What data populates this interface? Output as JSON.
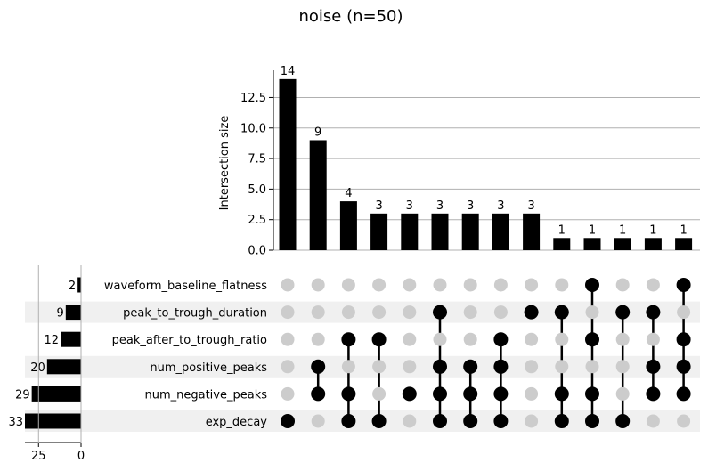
{
  "chart_data": {
    "type": "upset",
    "title": "noise (n=50)",
    "intersection_axis": {
      "label": "Intersection size",
      "ylim": [
        0,
        14.5
      ],
      "ticks": [
        0.0,
        2.5,
        5.0,
        7.5,
        10.0,
        12.5
      ],
      "tick_labels": [
        "0.0",
        "2.5",
        "5.0",
        "7.5",
        "10.0",
        "12.5"
      ],
      "grid": true
    },
    "set_size_axis": {
      "ticks": [
        25,
        0
      ],
      "tick_labels": [
        "25",
        "0"
      ],
      "xlim": [
        33,
        0
      ]
    },
    "sets": [
      {
        "name": "waveform_baseline_flatness",
        "size": 2
      },
      {
        "name": "peak_to_trough_duration",
        "size": 9
      },
      {
        "name": "peak_after_to_trough_ratio",
        "size": 12
      },
      {
        "name": "num_positive_peaks",
        "size": 20
      },
      {
        "name": "num_negative_peaks",
        "size": 29
      },
      {
        "name": "exp_decay",
        "size": 33
      }
    ],
    "intersections": [
      {
        "size": 14,
        "label": "14",
        "members": [
          "exp_decay"
        ]
      },
      {
        "size": 9,
        "label": "9",
        "members": [
          "num_positive_peaks",
          "num_negative_peaks"
        ]
      },
      {
        "size": 4,
        "label": "4",
        "members": [
          "peak_after_to_trough_ratio",
          "num_negative_peaks",
          "exp_decay"
        ]
      },
      {
        "size": 3,
        "label": "3",
        "members": [
          "peak_after_to_trough_ratio",
          "exp_decay"
        ]
      },
      {
        "size": 3,
        "label": "3",
        "members": [
          "num_negative_peaks"
        ]
      },
      {
        "size": 3,
        "label": "3",
        "members": [
          "peak_to_trough_duration",
          "num_positive_peaks",
          "num_negative_peaks",
          "exp_decay"
        ]
      },
      {
        "size": 3,
        "label": "3",
        "members": [
          "num_positive_peaks",
          "num_negative_peaks",
          "exp_decay"
        ]
      },
      {
        "size": 3,
        "label": "3",
        "members": [
          "peak_after_to_trough_ratio",
          "num_positive_peaks",
          "num_negative_peaks",
          "exp_decay"
        ]
      },
      {
        "size": 3,
        "label": "3",
        "members": [
          "peak_to_trough_duration"
        ]
      },
      {
        "size": 1,
        "label": "1",
        "members": [
          "peak_to_trough_duration",
          "num_negative_peaks",
          "exp_decay"
        ]
      },
      {
        "size": 1,
        "label": "1",
        "members": [
          "waveform_baseline_flatness",
          "peak_after_to_trough_ratio",
          "num_negative_peaks",
          "exp_decay"
        ]
      },
      {
        "size": 1,
        "label": "1",
        "members": [
          "peak_to_trough_duration",
          "exp_decay"
        ]
      },
      {
        "size": 1,
        "label": "1",
        "members": [
          "peak_to_trough_duration",
          "num_positive_peaks",
          "num_negative_peaks"
        ]
      },
      {
        "size": 1,
        "label": "1",
        "members": [
          "waveform_baseline_flatness",
          "peak_after_to_trough_ratio",
          "num_positive_peaks",
          "num_negative_peaks"
        ]
      }
    ],
    "colors": {
      "bar": "#000000",
      "dot_active": "#000000",
      "dot_inactive": "#cccccc",
      "stripe": "#f0f0f0",
      "grid": "#b0b0b0"
    }
  }
}
